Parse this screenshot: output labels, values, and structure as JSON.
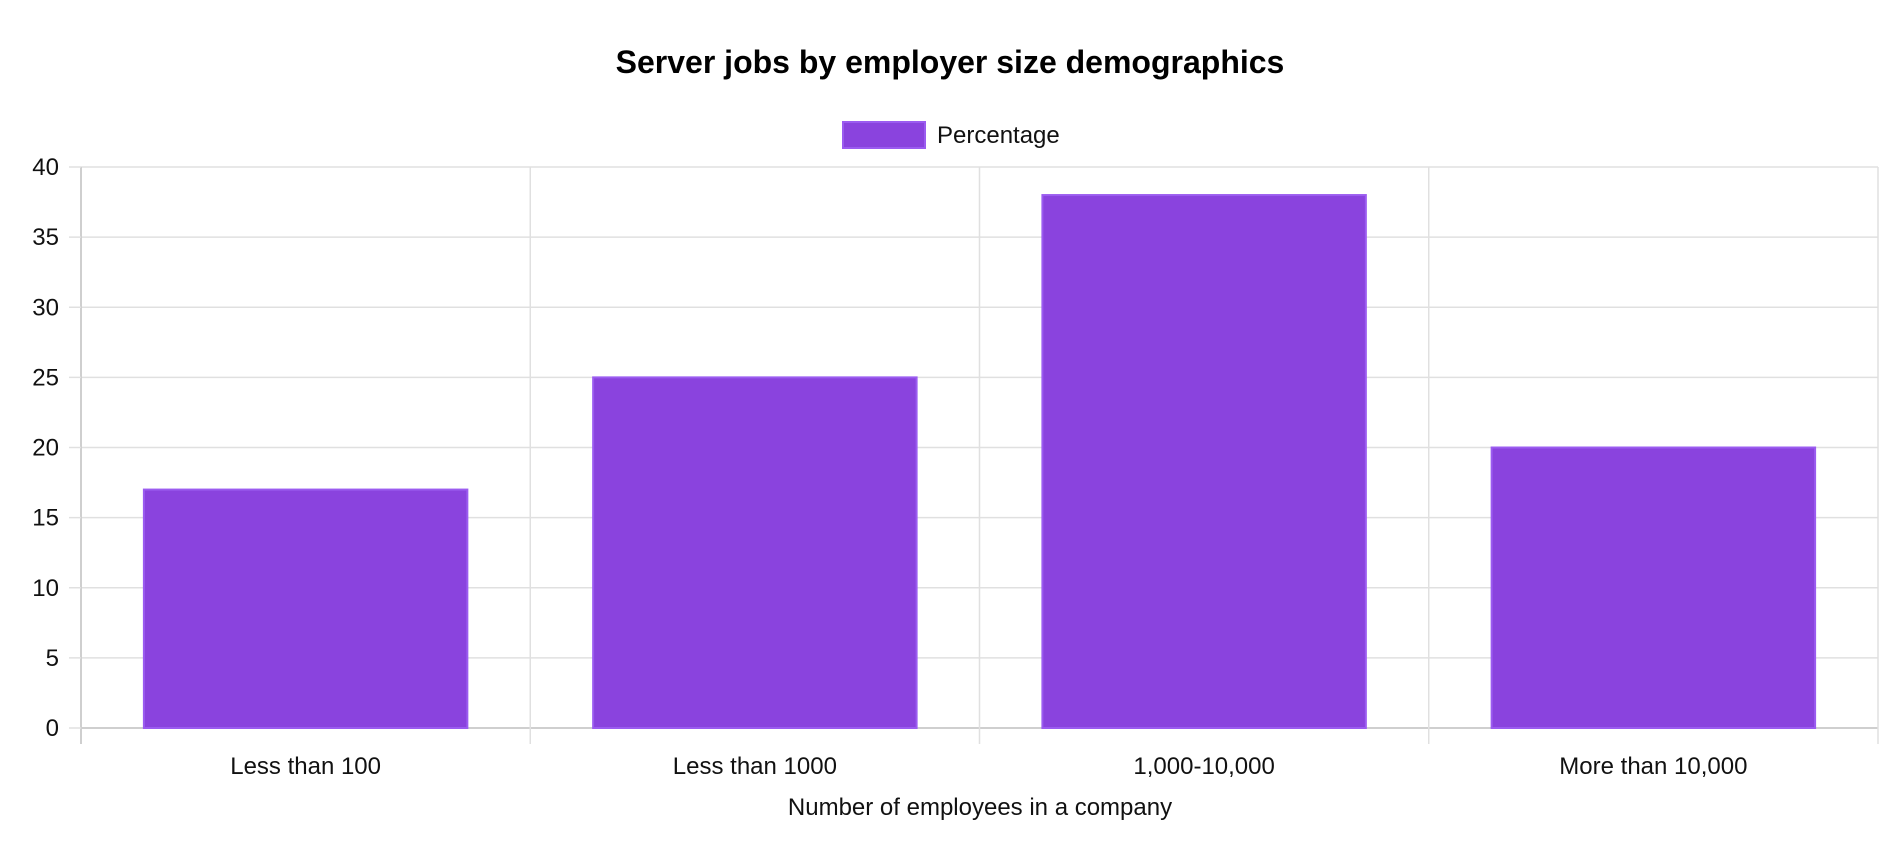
{
  "chart_data": {
    "type": "bar",
    "title": "Server jobs by employer size demographics",
    "categories": [
      "Less than 100",
      "Less than 1000",
      "1,000-10,000",
      "More than 10,000"
    ],
    "series": [
      {
        "name": "Percentage",
        "values": [
          17,
          25,
          38,
          20
        ],
        "color": "#8a43de",
        "border_color": "#9b5cf0"
      }
    ],
    "xlabel": "Number of employees in a company",
    "ylabel": "",
    "ylim": [
      0,
      40
    ],
    "yticks": [
      "0",
      "5",
      "10",
      "15",
      "20",
      "25",
      "30",
      "35",
      "40"
    ],
    "grid": true,
    "legend_position": "top-center"
  }
}
